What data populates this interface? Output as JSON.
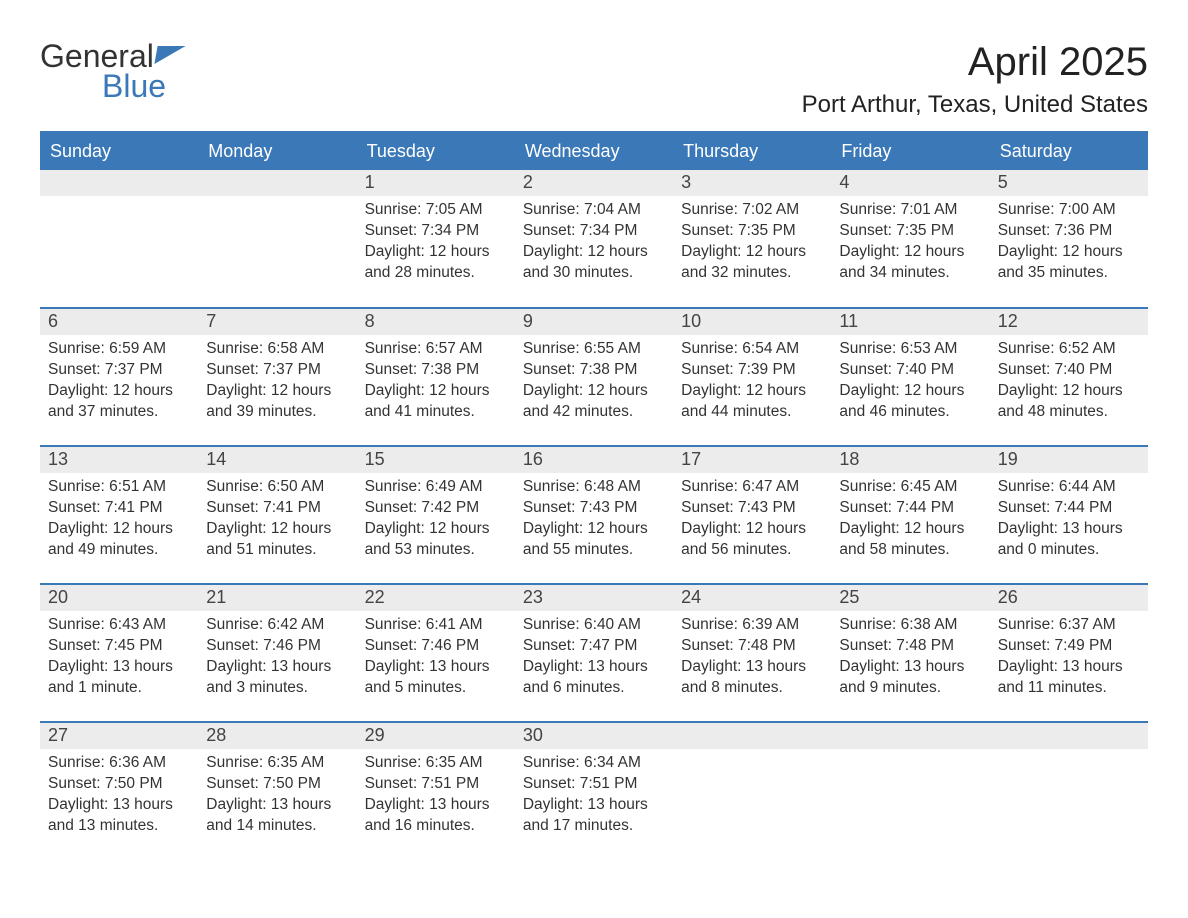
{
  "brand": {
    "line1": "General",
    "line2": "Blue"
  },
  "header": {
    "month_title": "April 2025",
    "location": "Port Arthur, Texas, United States"
  },
  "colors": {
    "accent": "#3a78b8",
    "header_bg": "#3a78b8",
    "header_text": "#ffffff",
    "daynum_bg": "#ececec",
    "text": "#333333",
    "background": "#ffffff"
  },
  "typography": {
    "month_title_fontsize": 40,
    "location_fontsize": 24,
    "weekday_fontsize": 18,
    "daynum_fontsize": 18,
    "body_fontsize": 15.5,
    "font_family": "Arial"
  },
  "layout": {
    "columns": 7,
    "rows": 5,
    "leading_blank_cells": 2,
    "trailing_blank_cells": 3,
    "row_border_color": "#3a78b8",
    "row_border_width": 2
  },
  "weekdays": [
    "Sunday",
    "Monday",
    "Tuesday",
    "Wednesday",
    "Thursday",
    "Friday",
    "Saturday"
  ],
  "days": [
    {
      "n": "1",
      "sunrise": "Sunrise: 7:05 AM",
      "sunset": "Sunset: 7:34 PM",
      "daylight": "Daylight: 12 hours and 28 minutes."
    },
    {
      "n": "2",
      "sunrise": "Sunrise: 7:04 AM",
      "sunset": "Sunset: 7:34 PM",
      "daylight": "Daylight: 12 hours and 30 minutes."
    },
    {
      "n": "3",
      "sunrise": "Sunrise: 7:02 AM",
      "sunset": "Sunset: 7:35 PM",
      "daylight": "Daylight: 12 hours and 32 minutes."
    },
    {
      "n": "4",
      "sunrise": "Sunrise: 7:01 AM",
      "sunset": "Sunset: 7:35 PM",
      "daylight": "Daylight: 12 hours and 34 minutes."
    },
    {
      "n": "5",
      "sunrise": "Sunrise: 7:00 AM",
      "sunset": "Sunset: 7:36 PM",
      "daylight": "Daylight: 12 hours and 35 minutes."
    },
    {
      "n": "6",
      "sunrise": "Sunrise: 6:59 AM",
      "sunset": "Sunset: 7:37 PM",
      "daylight": "Daylight: 12 hours and 37 minutes."
    },
    {
      "n": "7",
      "sunrise": "Sunrise: 6:58 AM",
      "sunset": "Sunset: 7:37 PM",
      "daylight": "Daylight: 12 hours and 39 minutes."
    },
    {
      "n": "8",
      "sunrise": "Sunrise: 6:57 AM",
      "sunset": "Sunset: 7:38 PM",
      "daylight": "Daylight: 12 hours and 41 minutes."
    },
    {
      "n": "9",
      "sunrise": "Sunrise: 6:55 AM",
      "sunset": "Sunset: 7:38 PM",
      "daylight": "Daylight: 12 hours and 42 minutes."
    },
    {
      "n": "10",
      "sunrise": "Sunrise: 6:54 AM",
      "sunset": "Sunset: 7:39 PM",
      "daylight": "Daylight: 12 hours and 44 minutes."
    },
    {
      "n": "11",
      "sunrise": "Sunrise: 6:53 AM",
      "sunset": "Sunset: 7:40 PM",
      "daylight": "Daylight: 12 hours and 46 minutes."
    },
    {
      "n": "12",
      "sunrise": "Sunrise: 6:52 AM",
      "sunset": "Sunset: 7:40 PM",
      "daylight": "Daylight: 12 hours and 48 minutes."
    },
    {
      "n": "13",
      "sunrise": "Sunrise: 6:51 AM",
      "sunset": "Sunset: 7:41 PM",
      "daylight": "Daylight: 12 hours and 49 minutes."
    },
    {
      "n": "14",
      "sunrise": "Sunrise: 6:50 AM",
      "sunset": "Sunset: 7:41 PM",
      "daylight": "Daylight: 12 hours and 51 minutes."
    },
    {
      "n": "15",
      "sunrise": "Sunrise: 6:49 AM",
      "sunset": "Sunset: 7:42 PM",
      "daylight": "Daylight: 12 hours and 53 minutes."
    },
    {
      "n": "16",
      "sunrise": "Sunrise: 6:48 AM",
      "sunset": "Sunset: 7:43 PM",
      "daylight": "Daylight: 12 hours and 55 minutes."
    },
    {
      "n": "17",
      "sunrise": "Sunrise: 6:47 AM",
      "sunset": "Sunset: 7:43 PM",
      "daylight": "Daylight: 12 hours and 56 minutes."
    },
    {
      "n": "18",
      "sunrise": "Sunrise: 6:45 AM",
      "sunset": "Sunset: 7:44 PM",
      "daylight": "Daylight: 12 hours and 58 minutes."
    },
    {
      "n": "19",
      "sunrise": "Sunrise: 6:44 AM",
      "sunset": "Sunset: 7:44 PM",
      "daylight": "Daylight: 13 hours and 0 minutes."
    },
    {
      "n": "20",
      "sunrise": "Sunrise: 6:43 AM",
      "sunset": "Sunset: 7:45 PM",
      "daylight": "Daylight: 13 hours and 1 minute."
    },
    {
      "n": "21",
      "sunrise": "Sunrise: 6:42 AM",
      "sunset": "Sunset: 7:46 PM",
      "daylight": "Daylight: 13 hours and 3 minutes."
    },
    {
      "n": "22",
      "sunrise": "Sunrise: 6:41 AM",
      "sunset": "Sunset: 7:46 PM",
      "daylight": "Daylight: 13 hours and 5 minutes."
    },
    {
      "n": "23",
      "sunrise": "Sunrise: 6:40 AM",
      "sunset": "Sunset: 7:47 PM",
      "daylight": "Daylight: 13 hours and 6 minutes."
    },
    {
      "n": "24",
      "sunrise": "Sunrise: 6:39 AM",
      "sunset": "Sunset: 7:48 PM",
      "daylight": "Daylight: 13 hours and 8 minutes."
    },
    {
      "n": "25",
      "sunrise": "Sunrise: 6:38 AM",
      "sunset": "Sunset: 7:48 PM",
      "daylight": "Daylight: 13 hours and 9 minutes."
    },
    {
      "n": "26",
      "sunrise": "Sunrise: 6:37 AM",
      "sunset": "Sunset: 7:49 PM",
      "daylight": "Daylight: 13 hours and 11 minutes."
    },
    {
      "n": "27",
      "sunrise": "Sunrise: 6:36 AM",
      "sunset": "Sunset: 7:50 PM",
      "daylight": "Daylight: 13 hours and 13 minutes."
    },
    {
      "n": "28",
      "sunrise": "Sunrise: 6:35 AM",
      "sunset": "Sunset: 7:50 PM",
      "daylight": "Daylight: 13 hours and 14 minutes."
    },
    {
      "n": "29",
      "sunrise": "Sunrise: 6:35 AM",
      "sunset": "Sunset: 7:51 PM",
      "daylight": "Daylight: 13 hours and 16 minutes."
    },
    {
      "n": "30",
      "sunrise": "Sunrise: 6:34 AM",
      "sunset": "Sunset: 7:51 PM",
      "daylight": "Daylight: 13 hours and 17 minutes."
    }
  ]
}
